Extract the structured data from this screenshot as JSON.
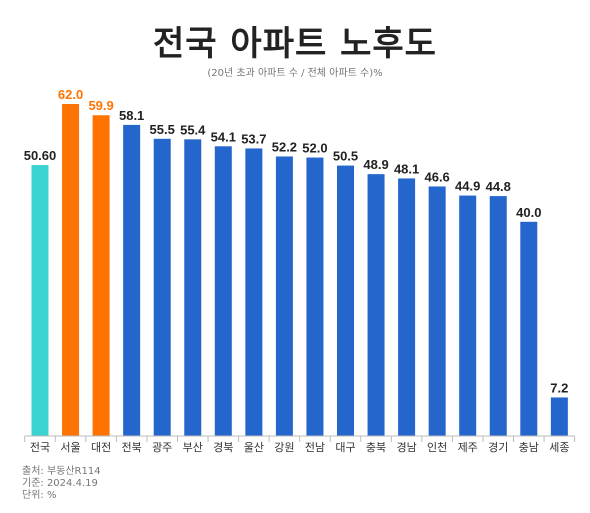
{
  "title": "전국 아파트 노후도",
  "subtitle": "(20년 초과 아파트 수 / 전체 아파트 수)%",
  "chart_data": {
    "type": "bar",
    "title": "전국 아파트 노후도",
    "subtitle": "(20년 초과 아파트 수 / 전체 아파트 수)%",
    "categories": [
      "전국",
      "서울",
      "대전",
      "전북",
      "광주",
      "부산",
      "경북",
      "울산",
      "강원",
      "전남",
      "대구",
      "충북",
      "경남",
      "인천",
      "제주",
      "경기",
      "충남",
      "세종"
    ],
    "values": [
      50.6,
      62.0,
      59.9,
      58.1,
      55.5,
      55.4,
      54.1,
      53.7,
      52.2,
      52.0,
      50.5,
      48.9,
      48.1,
      46.6,
      44.9,
      44.8,
      40.0,
      7.2
    ],
    "value_labels": [
      "50.60",
      "62.0",
      "59.9",
      "58.1",
      "55.5",
      "55.4",
      "54.1",
      "53.7",
      "52.2",
      "52.0",
      "50.5",
      "48.9",
      "48.1",
      "46.6",
      "44.9",
      "44.8",
      "40.0",
      "7.2"
    ],
    "ylim": [
      0,
      65
    ],
    "grid": false,
    "colors": {
      "national": "#3cd2d2",
      "highlight": "#ff7300",
      "default": "#2466cc",
      "highlight_label": "#ff7300",
      "default_label": "#222222"
    },
    "highlight_categories": [
      "서울",
      "대전"
    ],
    "national_category": "전국"
  },
  "footer": {
    "source": "출처: 부동산R114",
    "date": "기준: 2024.4.19",
    "unit": "단위: %"
  }
}
